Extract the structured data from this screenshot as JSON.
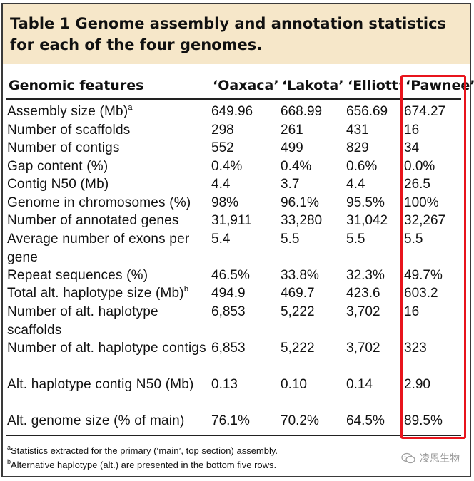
{
  "table": {
    "title": "Table 1 Genome assembly and annotation statistics for each of the four genomes.",
    "headers": [
      "Genomic features",
      "‘Oaxaca’",
      "‘Lakota’",
      "‘Elliott’",
      "‘Pawnee’"
    ],
    "highlighted_column": "‘Pawnee’",
    "rows": [
      {
        "feature": "Assembly size (Mb)",
        "sup": "a",
        "values": [
          "649.96",
          "668.99",
          "656.69",
          "674.27"
        ]
      },
      {
        "feature": "Number of scaffolds",
        "values": [
          "298",
          "261",
          "431",
          "16"
        ]
      },
      {
        "feature": "Number of contigs",
        "values": [
          "552",
          "499",
          "829",
          "34"
        ]
      },
      {
        "feature": "Gap content (%)",
        "values": [
          "0.4%",
          "0.4%",
          "0.6%",
          "0.0%"
        ]
      },
      {
        "feature": "Contig N50 (Mb)",
        "values": [
          "4.4",
          "3.7",
          "4.4",
          "26.5"
        ]
      },
      {
        "feature": "Genome in chromosomes (%)",
        "values": [
          "98%",
          "96.1%",
          "95.5%",
          "100%"
        ]
      },
      {
        "feature": "Number of annotated genes",
        "values": [
          "31,911",
          "33,280",
          "31,042",
          "32,267"
        ]
      },
      {
        "feature": "Average number of exons per gene",
        "values": [
          "5.4",
          "5.5",
          "5.5",
          "5.5"
        ]
      },
      {
        "feature": "Repeat sequences (%)",
        "values": [
          "46.5%",
          "33.8%",
          "32.3%",
          "49.7%"
        ]
      },
      {
        "feature": "Total alt. haplotype size (Mb)",
        "sup": "b",
        "values": [
          "494.9",
          "469.7",
          "423.6",
          "603.2"
        ]
      },
      {
        "feature": "Number of alt. haplotype scaffolds",
        "values": [
          "6,853",
          "5,222",
          "3,702",
          "16"
        ]
      },
      {
        "feature": "Number of alt. haplotype contigs",
        "values": [
          "6,853",
          "5,222",
          "3,702",
          "323"
        ]
      },
      {
        "feature": "Alt. haplotype contig N50 (Mb)",
        "values": [
          "0.13",
          "0.10",
          "0.14",
          "2.90"
        ]
      },
      {
        "feature": "Alt. genome size (% of main)",
        "values": [
          "76.1%",
          "70.2%",
          "64.5%",
          "89.5%"
        ]
      }
    ],
    "footnotes": [
      {
        "mark": "a",
        "text": "Statistics extracted for the primary (‘main’, top section) assembly."
      },
      {
        "mark": "b",
        "text": "Alternative haplotype (alt.) are presented in the bottom five rows."
      }
    ]
  },
  "watermark": {
    "text": "凌恩生物",
    "icon": "wechat-icon"
  },
  "colors": {
    "title_bg": "#f6e7c9",
    "highlight": "#e8141c",
    "border": "#3a3a3a"
  }
}
